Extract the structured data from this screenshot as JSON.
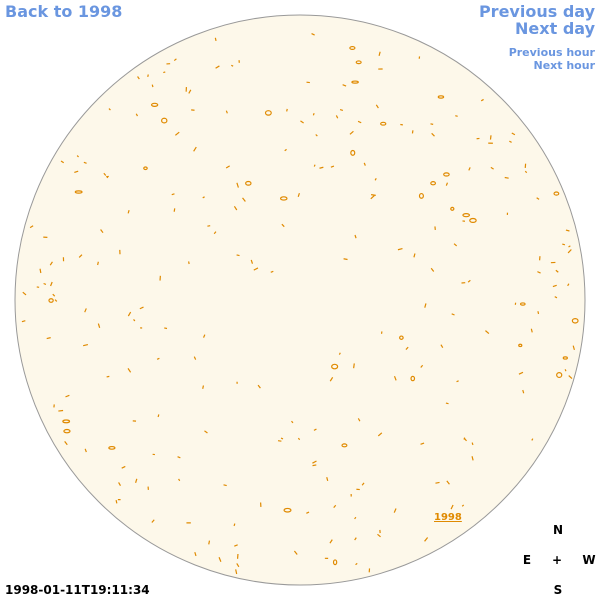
{
  "nav": {
    "back": "Back to 1998",
    "previous_day": "Previous day",
    "next_day": "Next day",
    "previous_hour": "Previous hour",
    "next_hour": "Next hour"
  },
  "disk": {
    "label": "1998"
  },
  "compass": {
    "north": "N",
    "east": "E",
    "center": "+",
    "west": "W",
    "south": "S"
  },
  "timestamp": "1998-01-11T19:11:34"
}
